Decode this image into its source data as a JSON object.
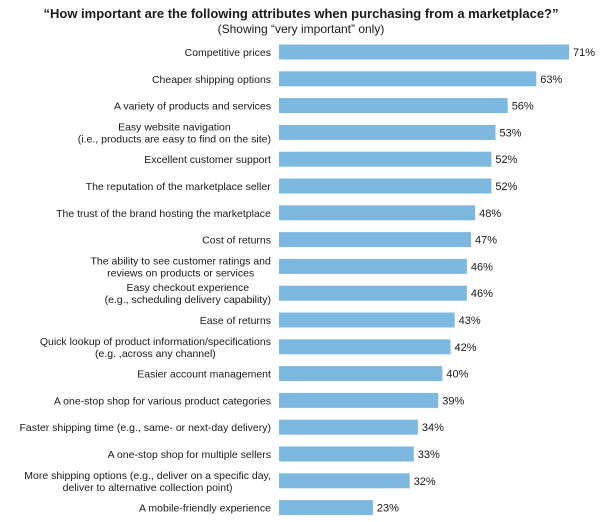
{
  "chart_data": {
    "type": "bar",
    "orientation": "horizontal",
    "title": "“How important are the following attributes when purchasing from a marketplace?”",
    "subtitle": "(Showing “very important” only)",
    "xlim": [
      0,
      71
    ],
    "grid": false,
    "color": "#7db8e0",
    "categories": [
      [
        "Competitive prices"
      ],
      [
        "Cheaper shipping options"
      ],
      [
        "A variety of products and services"
      ],
      [
        "Easy website navigation",
        "(i.e., products are easy to find on the site)"
      ],
      [
        "Excellent customer support"
      ],
      [
        "The reputation of the marketplace seller"
      ],
      [
        "The trust of the brand hosting the marketplace"
      ],
      [
        "Cost of returns"
      ],
      [
        "The ability to see customer ratings and",
        "reviews on products or services"
      ],
      [
        "Easy checkout experience",
        "(e.g., scheduling delivery capability)"
      ],
      [
        "Ease of returns"
      ],
      [
        "Quick lookup of product information/specifications",
        "(e.g. ,across any channel)"
      ],
      [
        "Easier account management"
      ],
      [
        "A one-stop shop for various product categories"
      ],
      [
        "Faster shipping time (e.g., same- or next-day delivery)"
      ],
      [
        "A one-stop shop for multiple sellers"
      ],
      [
        "More shipping options (e.g., deliver on a specific day,",
        "deliver to alternative collection point)"
      ],
      [
        "A mobile-friendly experience"
      ]
    ],
    "values": [
      71,
      63,
      56,
      53,
      52,
      52,
      48,
      47,
      46,
      46,
      43,
      42,
      40,
      39,
      34,
      33,
      32,
      23
    ],
    "value_suffix": "%"
  }
}
